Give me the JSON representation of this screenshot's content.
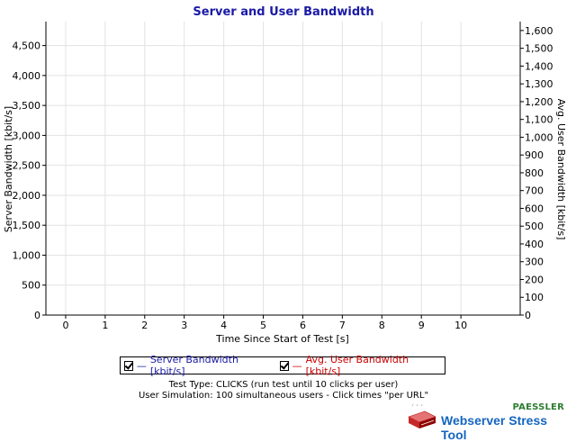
{
  "chart_data": {
    "type": "line",
    "title": "Server and User Bandwidth",
    "xlabel": "Time Since Start of Test [s]",
    "ylabel_left": "Server Bandwidth [kbit/s]",
    "ylabel_right": "Avg. User Bandwidth [kbit/s]",
    "x_ticks": [
      "0",
      "1",
      "2",
      "3",
      "4",
      "5",
      "6",
      "7",
      "8",
      "9",
      "10"
    ],
    "x_range": [
      -0.5,
      11.5
    ],
    "y_left_ticks": [
      "0",
      "500",
      "1,000",
      "1,500",
      "2,000",
      "2,500",
      "3,000",
      "3,500",
      "4,000",
      "4,500"
    ],
    "y_left_range": [
      0,
      4900
    ],
    "y_right_ticks": [
      "0",
      "100",
      "200",
      "300",
      "400",
      "500",
      "600",
      "700",
      "800",
      "900",
      "1,000",
      "1,100",
      "1,200",
      "1,300",
      "1,400",
      "1,500",
      "1,600"
    ],
    "y_right_range": [
      0,
      1650
    ],
    "grid": true,
    "series": [
      {
        "name": "Server Bandwidth [kbit/s]",
        "axis": "left",
        "color": "#1a1aa6",
        "values": []
      },
      {
        "name": "Avg. User Bandwidth [kbit/s]",
        "axis": "right",
        "color": "#cc0000",
        "values": []
      }
    ]
  },
  "legend": {
    "items": [
      {
        "label": "Server Bandwidth [kbit/s]",
        "color": "#1a1aa6"
      },
      {
        "label": "Avg. User Bandwidth [kbit/s]",
        "color": "#cc0000"
      }
    ]
  },
  "info": {
    "line1": "Test Type: CLICKS (run test until 10 clicks per user)",
    "line2": "User Simulation: 100 simultaneous users - Click times \"per URL\""
  },
  "brand": {
    "company": "PAESSLER",
    "product": "Webserver Stress Tool"
  }
}
